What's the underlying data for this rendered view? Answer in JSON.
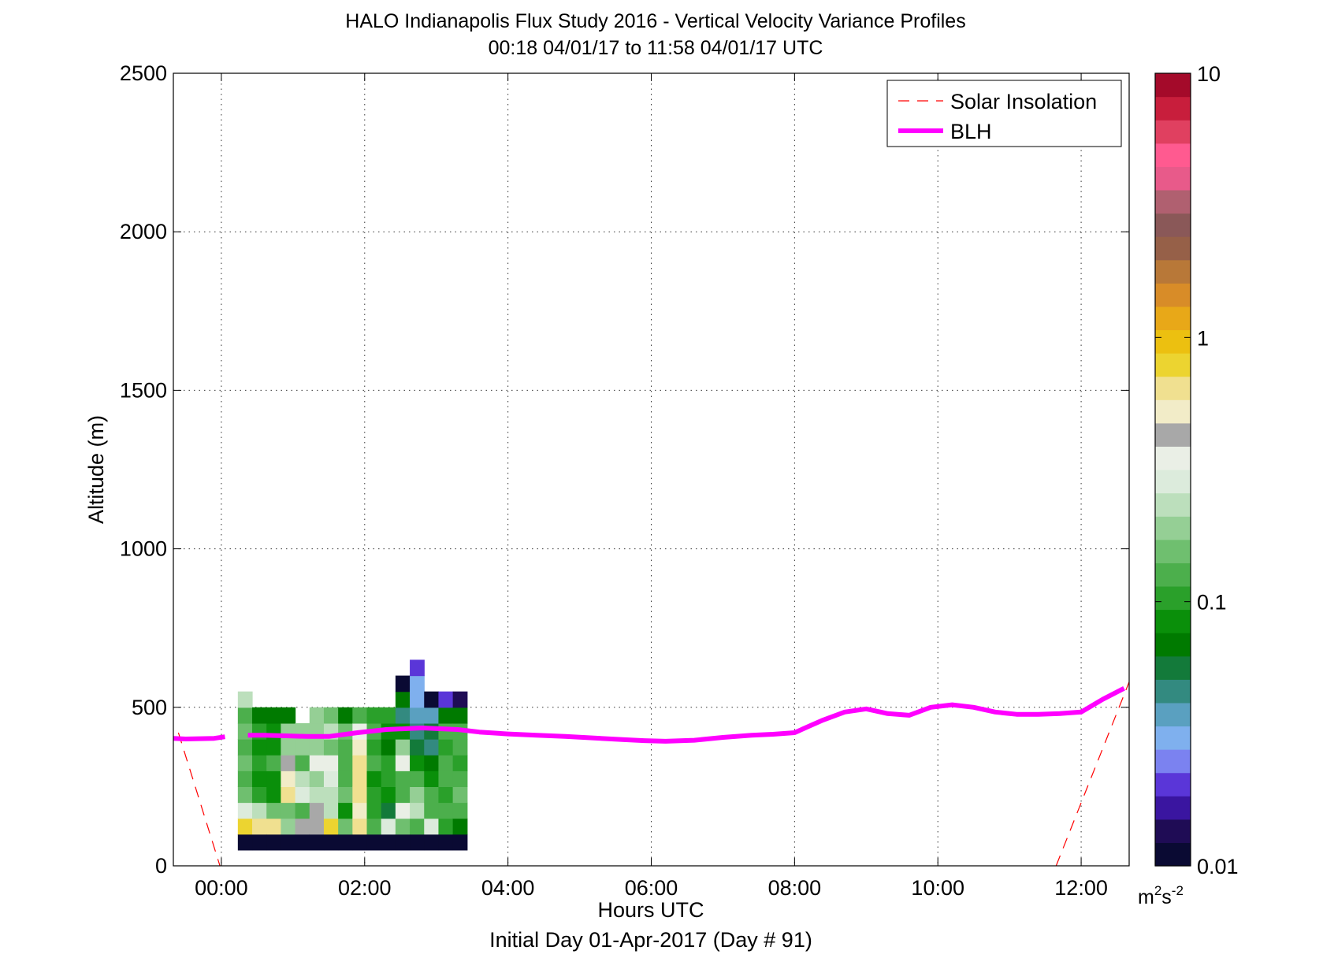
{
  "chart_data": {
    "type": "heatmap",
    "title": "HALO Indianapolis Flux Study 2016 - Vertical Velocity Variance Profiles",
    "subtitle": "00:18 04/01/17 to 11:58 04/01/17  UTC",
    "xlabel": "Hours UTC",
    "xlabel2": "Initial Day 01-Apr-2017 (Day # 91)",
    "ylabel": "Altitude (m)",
    "xlim": [
      -0.67,
      12.67
    ],
    "ylim": [
      0,
      2500
    ],
    "x_ticks": [
      0,
      2,
      4,
      6,
      8,
      10,
      12
    ],
    "x_tick_labels": [
      "00:00",
      "02:00",
      "04:00",
      "06:00",
      "08:00",
      "10:00",
      "12:00"
    ],
    "y_ticks": [
      0,
      500,
      1000,
      1500,
      2000,
      2500
    ],
    "y_tick_labels": [
      "0",
      "500",
      "1000",
      "1500",
      "2000",
      "2500"
    ],
    "grid": true,
    "legend_position": "top-right",
    "legend": [
      {
        "label": "Solar Insolation",
        "style": "dashed",
        "color": "#ff0000"
      },
      {
        "label": "BLH",
        "style": "solid",
        "color": "#ff00ff"
      }
    ],
    "colorbar": {
      "scale": "log",
      "min": 0.01,
      "max": 10,
      "tick_values": [
        0.01,
        0.1,
        1,
        10
      ],
      "tick_labels": [
        "0.01",
        "0.1",
        "1",
        "10"
      ],
      "unit_base": "m",
      "unit_exp1": "2",
      "unit_mid": "s",
      "unit_exp2": "-2",
      "colors": [
        "#0a0a33",
        "#1f0c55",
        "#3a15a0",
        "#5a36d8",
        "#7b82f0",
        "#7fb0ee",
        "#5aa0c0",
        "#338a80",
        "#137a3a",
        "#007a00",
        "#0a8f0a",
        "#2aa02a",
        "#4caf4c",
        "#6fbf6f",
        "#95cf95",
        "#bcdfbc",
        "#dcebdc",
        "#eaefe6",
        "#a8a8a8",
        "#f2ecc8",
        "#f0e090",
        "#ecd430",
        "#ecc010",
        "#e8a818",
        "#d88c28",
        "#b87838",
        "#966048",
        "#8a5858",
        "#b06070",
        "#e85a8a",
        "#ff5a90",
        "#e04060",
        "#c81e3c",
        "#a40a2a"
      ]
    },
    "time_step_hours": 0.2,
    "altitude_gate_m": 50,
    "columns": [
      {
        "t": 0.33,
        "cells": [
          [
            75,
            0.01
          ],
          [
            125,
            0.8
          ],
          [
            175,
            0.3
          ],
          [
            225,
            0.15
          ],
          [
            275,
            0.13
          ],
          [
            325,
            0.15
          ],
          [
            375,
            0.14
          ],
          [
            425,
            0.17
          ],
          [
            475,
            0.13
          ],
          [
            525,
            0.25
          ]
        ]
      },
      {
        "t": 0.53,
        "cells": [
          [
            75,
            0.01
          ],
          [
            125,
            0.7
          ],
          [
            175,
            0.22
          ],
          [
            225,
            0.1
          ],
          [
            275,
            0.08
          ],
          [
            325,
            0.11
          ],
          [
            375,
            0.08
          ],
          [
            425,
            0.1
          ],
          [
            475,
            0.07
          ]
        ]
      },
      {
        "t": 0.73,
        "cells": [
          [
            75,
            0.01
          ],
          [
            125,
            0.6
          ],
          [
            175,
            0.15
          ],
          [
            225,
            0.09
          ],
          [
            275,
            0.08
          ],
          [
            325,
            0.12
          ],
          [
            375,
            0.09
          ],
          [
            425,
            0.08
          ],
          [
            475,
            0.07
          ]
        ]
      },
      {
        "t": 0.93,
        "cells": [
          [
            75,
            0.01
          ],
          [
            125,
            0.2
          ],
          [
            175,
            0.16
          ],
          [
            225,
            0.7
          ],
          [
            275,
            0.5
          ],
          [
            325,
            0.4
          ],
          [
            375,
            0.2
          ],
          [
            425,
            0.2
          ],
          [
            475,
            0.07
          ]
        ]
      },
      {
        "t": 1.13,
        "cells": [
          [
            75,
            0.01
          ],
          [
            125,
            0.45
          ],
          [
            175,
            0.12
          ],
          [
            225,
            0.3
          ],
          [
            275,
            0.25
          ],
          [
            325,
            0.14
          ],
          [
            375,
            0.2
          ],
          [
            425,
            0.2
          ]
        ]
      },
      {
        "t": 1.33,
        "cells": [
          [
            75,
            0.01
          ],
          [
            125,
            0.4
          ],
          [
            175,
            0.4
          ],
          [
            225,
            0.22
          ],
          [
            275,
            0.2
          ],
          [
            325,
            0.35
          ],
          [
            375,
            0.18
          ],
          [
            425,
            0.2
          ],
          [
            475,
            0.18
          ]
        ]
      },
      {
        "t": 1.53,
        "cells": [
          [
            75,
            0.01
          ],
          [
            125,
            0.75
          ],
          [
            175,
            0.25
          ],
          [
            225,
            0.25
          ],
          [
            275,
            0.26
          ],
          [
            325,
            0.35
          ],
          [
            375,
            0.17
          ],
          [
            425,
            0.25
          ],
          [
            475,
            0.17
          ]
        ]
      },
      {
        "t": 1.73,
        "cells": [
          [
            75,
            0.01
          ],
          [
            125,
            0.16
          ],
          [
            175,
            0.08
          ],
          [
            225,
            0.15
          ],
          [
            275,
            0.14
          ],
          [
            325,
            0.13
          ],
          [
            375,
            0.12
          ],
          [
            425,
            0.15
          ],
          [
            475,
            0.07
          ]
        ]
      },
      {
        "t": 1.93,
        "cells": [
          [
            75,
            0.01
          ],
          [
            125,
            0.6
          ],
          [
            175,
            0.55
          ],
          [
            225,
            0.6
          ],
          [
            275,
            0.7
          ],
          [
            325,
            0.7
          ],
          [
            375,
            0.55
          ],
          [
            425,
            0.35
          ],
          [
            475,
            0.13
          ]
        ]
      },
      {
        "t": 2.13,
        "cells": [
          [
            75,
            0.01
          ],
          [
            125,
            0.14
          ],
          [
            175,
            0.1
          ],
          [
            225,
            0.11
          ],
          [
            275,
            0.09
          ],
          [
            325,
            0.12
          ],
          [
            375,
            0.11
          ],
          [
            425,
            0.13
          ],
          [
            475,
            0.1
          ]
        ]
      },
      {
        "t": 2.33,
        "cells": [
          [
            75,
            0.01
          ],
          [
            125,
            0.3
          ],
          [
            175,
            0.06
          ],
          [
            225,
            0.08
          ],
          [
            275,
            0.11
          ],
          [
            325,
            0.11
          ],
          [
            375,
            0.07
          ],
          [
            425,
            0.09
          ],
          [
            475,
            0.1
          ]
        ]
      },
      {
        "t": 2.53,
        "cells": [
          [
            75,
            0.01
          ],
          [
            125,
            0.17
          ],
          [
            175,
            0.35
          ],
          [
            225,
            0.14
          ],
          [
            275,
            0.12
          ],
          [
            325,
            0.35
          ],
          [
            375,
            0.2
          ],
          [
            425,
            0.08
          ],
          [
            475,
            0.05
          ],
          [
            525,
            0.07
          ],
          [
            575,
            0.01
          ]
        ]
      },
      {
        "t": 2.73,
        "cells": [
          [
            75,
            0.01
          ],
          [
            125,
            0.13
          ],
          [
            175,
            0.22
          ],
          [
            225,
            0.2
          ],
          [
            275,
            0.13
          ],
          [
            325,
            0.09
          ],
          [
            375,
            0.06
          ],
          [
            425,
            0.05
          ],
          [
            475,
            0.035
          ],
          [
            525,
            0.03
          ],
          [
            575,
            0.028
          ],
          [
            625,
            0.022
          ]
        ]
      },
      {
        "t": 2.93,
        "cells": [
          [
            75,
            0.01
          ],
          [
            125,
            0.27
          ],
          [
            175,
            0.14
          ],
          [
            225,
            0.13
          ],
          [
            275,
            0.08
          ],
          [
            325,
            0.07
          ],
          [
            375,
            0.05
          ],
          [
            425,
            0.06
          ],
          [
            475,
            0.04
          ],
          [
            525,
            0.012
          ]
        ]
      },
      {
        "t": 3.13,
        "cells": [
          [
            75,
            0.01
          ],
          [
            125,
            0.1
          ],
          [
            175,
            0.13
          ],
          [
            225,
            0.11
          ],
          [
            275,
            0.13
          ],
          [
            325,
            0.12
          ],
          [
            375,
            0.11
          ],
          [
            425,
            0.12
          ],
          [
            475,
            0.07
          ],
          [
            525,
            0.02
          ]
        ]
      },
      {
        "t": 3.33,
        "cells": [
          [
            75,
            0.01
          ],
          [
            125,
            0.07
          ],
          [
            175,
            0.13
          ],
          [
            225,
            0.16
          ],
          [
            275,
            0.13
          ],
          [
            325,
            0.11
          ],
          [
            375,
            0.13
          ],
          [
            425,
            0.14
          ],
          [
            475,
            0.07
          ],
          [
            525,
            0.013
          ]
        ]
      }
    ],
    "blh": {
      "x": [
        0.37,
        0.6,
        0.9,
        1.2,
        1.5,
        1.9,
        2.3,
        2.8,
        3.3,
        3.6,
        4.0,
        4.4,
        4.8,
        5.2,
        5.6,
        5.9,
        6.2,
        6.6,
        7.0,
        7.4,
        7.7,
        8.0,
        8.2,
        8.4,
        8.7,
        9.0,
        9.3,
        9.6,
        9.9,
        10.2,
        10.5,
        10.8,
        11.1,
        11.4,
        11.7,
        12.0,
        12.3,
        12.6
      ],
      "y": [
        412,
        412,
        410,
        408,
        408,
        420,
        430,
        435,
        430,
        422,
        416,
        412,
        408,
        403,
        398,
        395,
        393,
        396,
        405,
        412,
        415,
        420,
        440,
        460,
        485,
        495,
        480,
        475,
        500,
        508,
        500,
        485,
        478,
        478,
        480,
        485,
        525,
        560
      ]
    },
    "blh_gap": {
      "x": [
        -0.67,
        -0.5,
        -0.3,
        -0.1,
        0.05
      ],
      "y": [
        402,
        400,
        401,
        402,
        407
      ]
    },
    "solar": [
      {
        "x": [
          -0.6,
          -0.02
        ],
        "y": [
          420,
          0
        ]
      },
      {
        "x": [
          11.65,
          12.67
        ],
        "y": [
          0,
          580
        ]
      }
    ]
  }
}
